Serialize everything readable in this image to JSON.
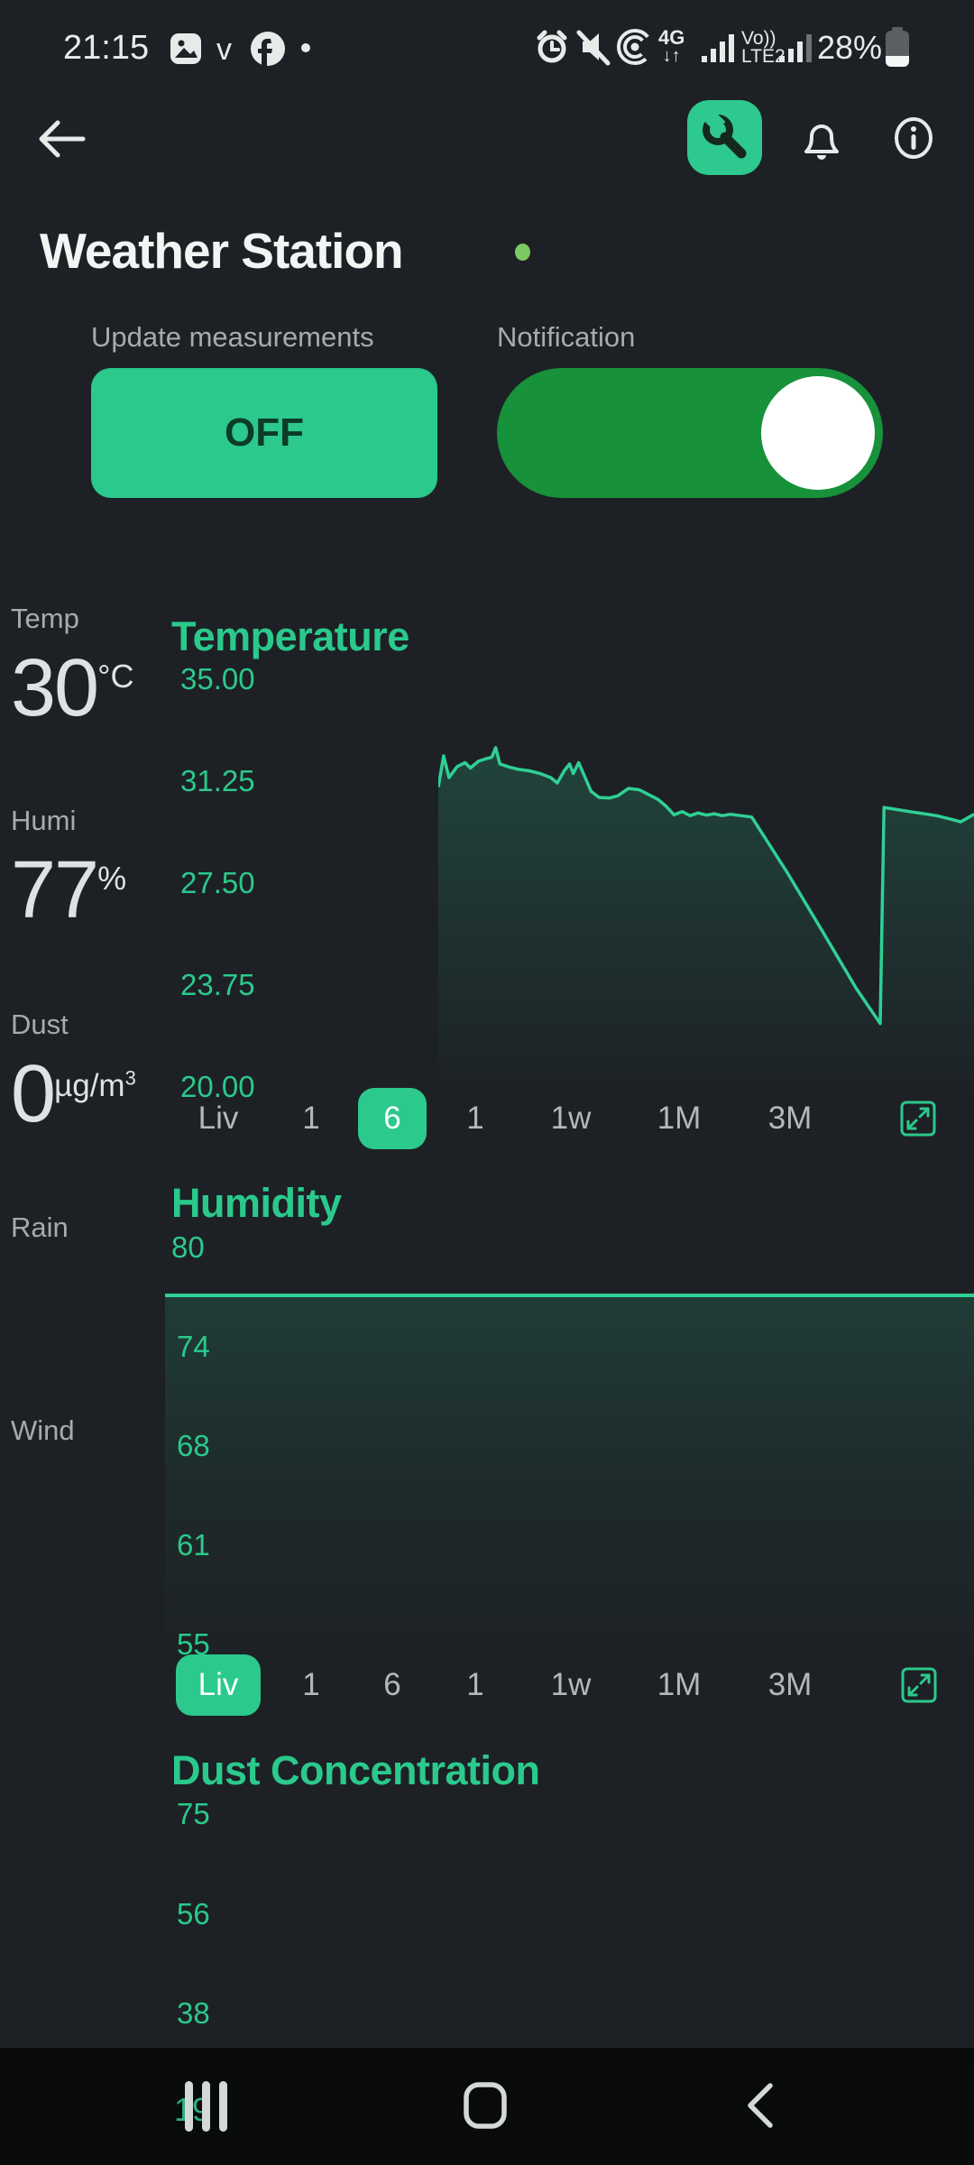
{
  "status_bar": {
    "time": "21:15",
    "notif_app_2": "v",
    "network_type": "4G",
    "network_arrows": "↓↑",
    "volte_line1": "Vo))",
    "volte_line2": "LTE2",
    "battery_percent": "28%"
  },
  "toolbar": {
    "wrench_button": "settings",
    "bell_button": "notifications",
    "info_button": "info"
  },
  "header": {
    "title": "Weather Station"
  },
  "controls": {
    "update_label": "Update measurements",
    "update_button_text": "OFF",
    "notification_label": "Notification",
    "notification_on": true
  },
  "sidebar": {
    "temp_label": "Temp",
    "temp_value": "30",
    "temp_unit": "°C",
    "humi_label": "Humi",
    "humi_value": "77",
    "humi_unit": "%",
    "dust_label": "Dust",
    "dust_value": "0",
    "dust_unit": "µg/m",
    "dust_unit_sup": "3",
    "rain_label": "Rain",
    "wind_label": "Wind"
  },
  "nav": {
    "peek_tick": "19"
  },
  "colors": {
    "accent_green": "#2bc98c",
    "line_green": "#2fd095",
    "toggle_green": "#17913a",
    "title_dot_green": "#7dc861",
    "background": "#1d2125",
    "nav_background": "#07090a"
  },
  "chart_data": [
    {
      "id": "temperature",
      "type": "area",
      "title": "Temperature",
      "y_ticks": [
        "35.00",
        "31.25",
        "27.50",
        "23.75",
        "20.00"
      ],
      "ylim": [
        20,
        35
      ],
      "grid": false,
      "legend": "none",
      "ranges": [
        "Liv",
        "1",
        "6",
        "1",
        "1w",
        "1M",
        "3M"
      ],
      "active_range_index": 2,
      "points": [
        [
          0.0,
          31.0
        ],
        [
          0.01,
          32.15
        ],
        [
          0.02,
          31.35
        ],
        [
          0.035,
          31.75
        ],
        [
          0.05,
          31.9
        ],
        [
          0.06,
          31.7
        ],
        [
          0.075,
          31.95
        ],
        [
          0.09,
          32.05
        ],
        [
          0.1,
          32.1
        ],
        [
          0.107,
          32.45
        ],
        [
          0.115,
          31.85
        ],
        [
          0.13,
          31.75
        ],
        [
          0.15,
          31.65
        ],
        [
          0.17,
          31.6
        ],
        [
          0.19,
          31.5
        ],
        [
          0.21,
          31.35
        ],
        [
          0.222,
          31.15
        ],
        [
          0.235,
          31.6
        ],
        [
          0.245,
          31.85
        ],
        [
          0.252,
          31.5
        ],
        [
          0.262,
          31.9
        ],
        [
          0.272,
          31.45
        ],
        [
          0.285,
          30.85
        ],
        [
          0.3,
          30.62
        ],
        [
          0.32,
          30.6
        ],
        [
          0.335,
          30.68
        ],
        [
          0.355,
          30.95
        ],
        [
          0.375,
          30.9
        ],
        [
          0.39,
          30.75
        ],
        [
          0.41,
          30.55
        ],
        [
          0.425,
          30.3
        ],
        [
          0.44,
          29.98
        ],
        [
          0.455,
          30.1
        ],
        [
          0.47,
          29.95
        ],
        [
          0.485,
          30.05
        ],
        [
          0.5,
          29.97
        ],
        [
          0.515,
          30.02
        ],
        [
          0.53,
          29.95
        ],
        [
          0.545,
          30.0
        ],
        [
          0.585,
          29.9
        ],
        [
          0.65,
          27.9
        ],
        [
          0.72,
          25.6
        ],
        [
          0.78,
          23.6
        ],
        [
          0.825,
          22.3
        ],
        [
          0.832,
          30.25
        ],
        [
          0.88,
          30.1
        ],
        [
          0.93,
          29.95
        ],
        [
          0.965,
          29.78
        ],
        [
          0.975,
          29.72
        ],
        [
          1.0,
          30.0
        ]
      ]
    },
    {
      "id": "humidity",
      "type": "area",
      "title": "Humidity",
      "y_ticks": [
        "80",
        "74",
        "68",
        "61",
        "55"
      ],
      "ylim": [
        55,
        80
      ],
      "grid": false,
      "legend": "none",
      "ranges": [
        "Liv",
        "1",
        "6",
        "1",
        "1w",
        "1M",
        "3M"
      ],
      "active_range_index": 0,
      "current_value": 77,
      "points": [
        [
          0,
          77
        ],
        [
          1,
          77
        ]
      ]
    },
    {
      "id": "dust",
      "type": "area",
      "title": "Dust Concentration",
      "y_ticks": [
        "75",
        "56",
        "38",
        "19"
      ],
      "ylim": [
        0,
        75
      ],
      "grid": false,
      "legend": "none",
      "current_value": 0,
      "points": [
        [
          0,
          0
        ],
        [
          1,
          0
        ]
      ]
    }
  ]
}
